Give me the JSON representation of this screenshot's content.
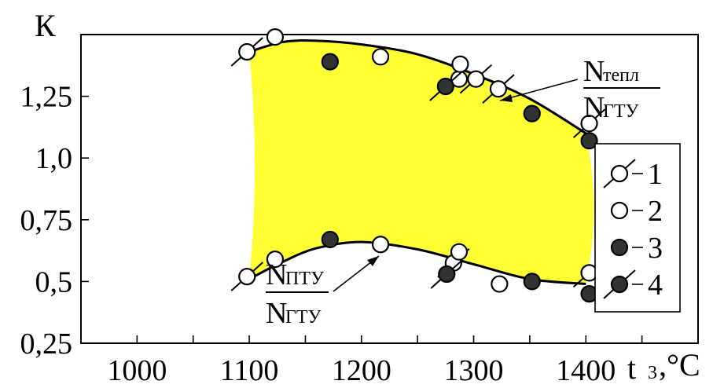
{
  "chart_data": {
    "type": "scatter",
    "ylabel": "К",
    "xlabel": "t",
    "xlabel_sub": "3",
    "xlabel_unit": ",°С",
    "xlim": [
      950,
      1500
    ],
    "ylim": [
      0.25,
      1.5
    ],
    "x_ticks": [
      {
        "value": 1000,
        "label": "1000"
      },
      {
        "value": 1100,
        "label": "1100"
      },
      {
        "value": 1200,
        "label": "1200"
      },
      {
        "value": 1300,
        "label": "1300"
      },
      {
        "value": 1400,
        "label": "1400"
      }
    ],
    "y_ticks": [
      {
        "value": 0.25,
        "label": "0,25"
      },
      {
        "value": 0.5,
        "label": "0,5"
      },
      {
        "value": 0.75,
        "label": "0,75"
      },
      {
        "value": 1.0,
        "label": "1,0"
      },
      {
        "value": 1.25,
        "label": "1,25"
      }
    ],
    "fill_color": "#ffff33",
    "curves": [
      {
        "name_top": "N",
        "name_top_sub": "тепл",
        "name_bottom": "N",
        "name_bottom_sub": "ГТУ",
        "points": [
          [
            1100,
            1.43
          ],
          [
            1130,
            1.47
          ],
          [
            1160,
            1.475
          ],
          [
            1200,
            1.46
          ],
          [
            1250,
            1.42
          ],
          [
            1300,
            1.34
          ],
          [
            1350,
            1.24
          ],
          [
            1400,
            1.1
          ]
        ]
      },
      {
        "name_top": "N",
        "name_top_sub": "ПТУ",
        "name_bottom": "N",
        "name_bottom_sub": "ГТУ",
        "points": [
          [
            1100,
            0.51
          ],
          [
            1130,
            0.58
          ],
          [
            1160,
            0.635
          ],
          [
            1200,
            0.66
          ],
          [
            1250,
            0.63
          ],
          [
            1300,
            0.57
          ],
          [
            1350,
            0.51
          ],
          [
            1400,
            0.49
          ]
        ]
      }
    ],
    "series": [
      {
        "marker": "open-slash",
        "points": [
          [
            1098,
            1.43
          ],
          [
            1302,
            1.32
          ],
          [
            1322,
            1.28
          ],
          [
            1403,
            1.14
          ],
          [
            1098,
            0.52
          ],
          [
            1282,
            0.575
          ],
          [
            1403,
            0.535
          ]
        ]
      },
      {
        "marker": "open",
        "points": [
          [
            1123,
            1.49
          ],
          [
            1217,
            1.41
          ],
          [
            1287,
            1.32
          ],
          [
            1288,
            1.38
          ],
          [
            1287,
            0.62
          ],
          [
            1323,
            0.49
          ],
          [
            1217,
            0.65
          ],
          [
            1123,
            0.59
          ]
        ]
      },
      {
        "marker": "filled",
        "points": [
          [
            1172,
            1.39
          ],
          [
            1352,
            1.18
          ],
          [
            1403,
            1.07
          ],
          [
            1172,
            0.67
          ],
          [
            1352,
            0.5
          ],
          [
            1403,
            0.45
          ]
        ]
      },
      {
        "marker": "filled-slash",
        "points": [
          [
            1275,
            1.29
          ],
          [
            1276,
            0.53
          ]
        ]
      }
    ],
    "legend": {
      "position": "right",
      "entries": [
        {
          "marker": "open-slash",
          "label": "1"
        },
        {
          "marker": "open",
          "label": "2"
        },
        {
          "marker": "filled",
          "label": "3"
        },
        {
          "marker": "filled-slash",
          "label": "4"
        }
      ]
    }
  }
}
